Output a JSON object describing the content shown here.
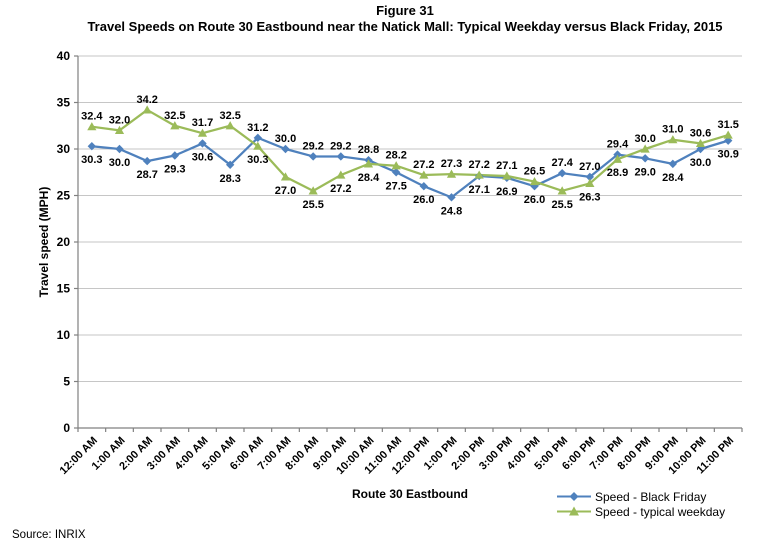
{
  "figure": {
    "title_line1": "Figure 31",
    "title_line2": "Travel Speeds on Route 30 Eastbound near the Natick Mall: Typical Weekday versus Black Friday, 2015",
    "source": "Source: INRIX"
  },
  "chart_data": {
    "type": "line",
    "title": "Travel Speeds on Route 30 Eastbound near the Natick Mall: Typical Weekday versus Black Friday, 2015",
    "categories": [
      "12:00 AM",
      "1:00 AM",
      "2:00 AM",
      "3:00 AM",
      "4:00 AM",
      "5:00 AM",
      "6:00 AM",
      "7:00 AM",
      "8:00 AM",
      "9:00 AM",
      "10:00 AM",
      "11:00 AM",
      "12:00 PM",
      "1:00 PM",
      "2:00 PM",
      "3:00 PM",
      "4:00 PM",
      "5:00 PM",
      "6:00 PM",
      "7:00 PM",
      "8:00 PM",
      "9:00 PM",
      "10:00 PM",
      "11:00 PM"
    ],
    "series": [
      {
        "name": "Speed - Black Friday",
        "color": "#4F81BD",
        "marker": "diamond",
        "values": [
          30.3,
          30.0,
          28.7,
          29.3,
          30.6,
          28.3,
          31.2,
          30.0,
          29.2,
          29.2,
          28.8,
          27.5,
          26.0,
          24.8,
          27.1,
          26.9,
          26.0,
          27.4,
          27.0,
          29.4,
          29.0,
          28.4,
          30.0,
          30.9
        ]
      },
      {
        "name": "Speed - typical weekday",
        "color": "#9BBB59",
        "marker": "triangle",
        "values": [
          32.4,
          32.0,
          34.2,
          32.5,
          31.7,
          32.5,
          30.3,
          27.0,
          25.5,
          27.2,
          28.4,
          28.2,
          27.2,
          27.3,
          27.2,
          27.1,
          26.5,
          25.5,
          26.3,
          28.9,
          30.0,
          31.0,
          30.6,
          31.5
        ]
      }
    ],
    "xlabel": "Route 30 Eastbound",
    "ylabel": "Travel speed (MPH)",
    "ylim": [
      0,
      40
    ],
    "ytick_step": 5,
    "grid": true,
    "data_labels": true,
    "legend_position": "bottom-right",
    "gridline_color": "#C6C6C6",
    "axis_color": "#808080"
  }
}
